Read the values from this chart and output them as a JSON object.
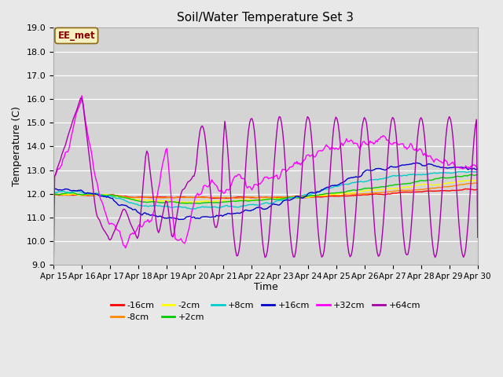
{
  "title": "Soil/Water Temperature Set 3",
  "xlabel": "Time",
  "ylabel": "Temperature (C)",
  "ylim": [
    9.0,
    19.0
  ],
  "yticks": [
    9.0,
    10.0,
    11.0,
    12.0,
    13.0,
    14.0,
    15.0,
    16.0,
    17.0,
    18.0,
    19.0
  ],
  "xtick_labels": [
    "Apr 15",
    "Apr 16",
    "Apr 17",
    "Apr 18",
    "Apr 19",
    "Apr 20",
    "Apr 21",
    "Apr 22",
    "Apr 23",
    "Apr 24",
    "Apr 25",
    "Apr 26",
    "Apr 27",
    "Apr 28",
    "Apr 29",
    "Apr 30"
  ],
  "legend_label": "EE_met",
  "series_labels": [
    "-16cm",
    "-8cm",
    "-2cm",
    "+2cm",
    "+8cm",
    "+16cm",
    "+32cm",
    "+64cm"
  ],
  "series_colors": [
    "#ff0000",
    "#ff8800",
    "#ffff00",
    "#00cc00",
    "#00cccc",
    "#0000cc",
    "#ff00ff",
    "#aa00aa"
  ],
  "background_color": "#e8e8e8",
  "plot_bg_color": "#d4d4d4"
}
